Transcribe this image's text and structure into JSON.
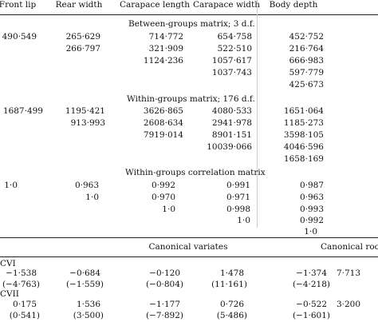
{
  "columns": [
    "Front lip",
    "Rear width",
    "Carapace length",
    "Carapace width",
    "Body depth"
  ],
  "sections": [
    {
      "title": "Between-groups matrix; 3 d.f.",
      "rows": [
        [
          "490·549",
          "265·629",
          "714·772",
          "654·758",
          "452·752"
        ],
        [
          "",
          "266·797",
          "321·909",
          "522·510",
          "216·764"
        ],
        [
          "",
          "",
          "1124·236",
          "1057·617",
          "666·983"
        ],
        [
          "",
          "",
          "",
          "1037·743",
          "597·779"
        ],
        [
          "",
          "",
          "",
          "",
          "425·673"
        ]
      ]
    },
    {
      "title": "Within-groups matrix; 176 d.f.",
      "rows": [
        [
          "1687·499",
          "1195·421",
          "3626·865",
          "4080·533",
          "1651·064"
        ],
        [
          "",
          "913·993",
          "2608·634",
          "2941·978",
          "1185·273"
        ],
        [
          "",
          "",
          "7919·014",
          "8901·151",
          "3598·105"
        ],
        [
          "",
          "",
          "",
          "10039·066",
          "4046·596"
        ],
        [
          "",
          "",
          "",
          "",
          "1658·169"
        ]
      ]
    },
    {
      "title": "Within-groups correlation matrix",
      "rows": [
        [
          "1·0",
          "0·963",
          "0·992",
          "0·991",
          "0·987"
        ],
        [
          "",
          "1·0",
          "0·970",
          "0·971",
          "0·963"
        ],
        [
          "",
          "",
          "1·0",
          "0·998",
          "0·993"
        ],
        [
          "",
          "",
          "",
          "1·0",
          "0·992"
        ],
        [
          "",
          "",
          "",
          "",
          "1·0"
        ]
      ]
    }
  ],
  "canonical": {
    "variates_header": "Canonical variates",
    "roots_header": "Canonical roots",
    "rows": [
      {
        "label": "CVI",
        "values": [
          "−1·538",
          "−0·684",
          "−0·120",
          "1·478",
          "−1·374"
        ],
        "errors": [
          "(−4·763)",
          "(−1·559)",
          "(−0·804)",
          "(11·161)",
          "(−4·218)"
        ],
        "root": "7·713"
      },
      {
        "label": "CVII",
        "values": [
          "0·175",
          "1·536",
          "−1·177",
          "0·726",
          "−0·522"
        ],
        "errors": [
          "(0·541)",
          "(3·500)",
          "(−7·892)",
          "(5·486)",
          "(−1·601)"
        ],
        "root": "3·200"
      }
    ]
  }
}
